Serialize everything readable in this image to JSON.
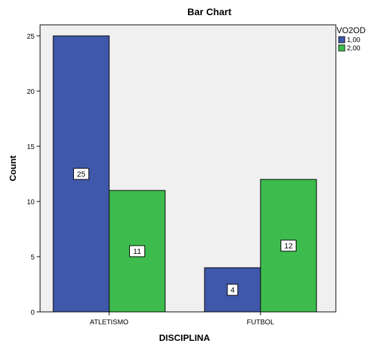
{
  "chart_data": {
    "type": "bar",
    "title": "Bar Chart",
    "xlabel": "DISCIPLINA",
    "ylabel": "Count",
    "categories": [
      "ATLETISMO",
      "FUTBOL"
    ],
    "series": [
      {
        "name": "1,00",
        "values": [
          25,
          4
        ],
        "color": "#3f58aa"
      },
      {
        "name": "2,00",
        "values": [
          11,
          12
        ],
        "color": "#3dbb4c"
      }
    ],
    "legend_title": "VO2OD",
    "legend_position": "top-right",
    "ylim": [
      0,
      26
    ],
    "yticks": [
      0,
      5,
      10,
      15,
      20,
      25
    ],
    "grid": false,
    "plot_background": "#f0f0f0"
  }
}
